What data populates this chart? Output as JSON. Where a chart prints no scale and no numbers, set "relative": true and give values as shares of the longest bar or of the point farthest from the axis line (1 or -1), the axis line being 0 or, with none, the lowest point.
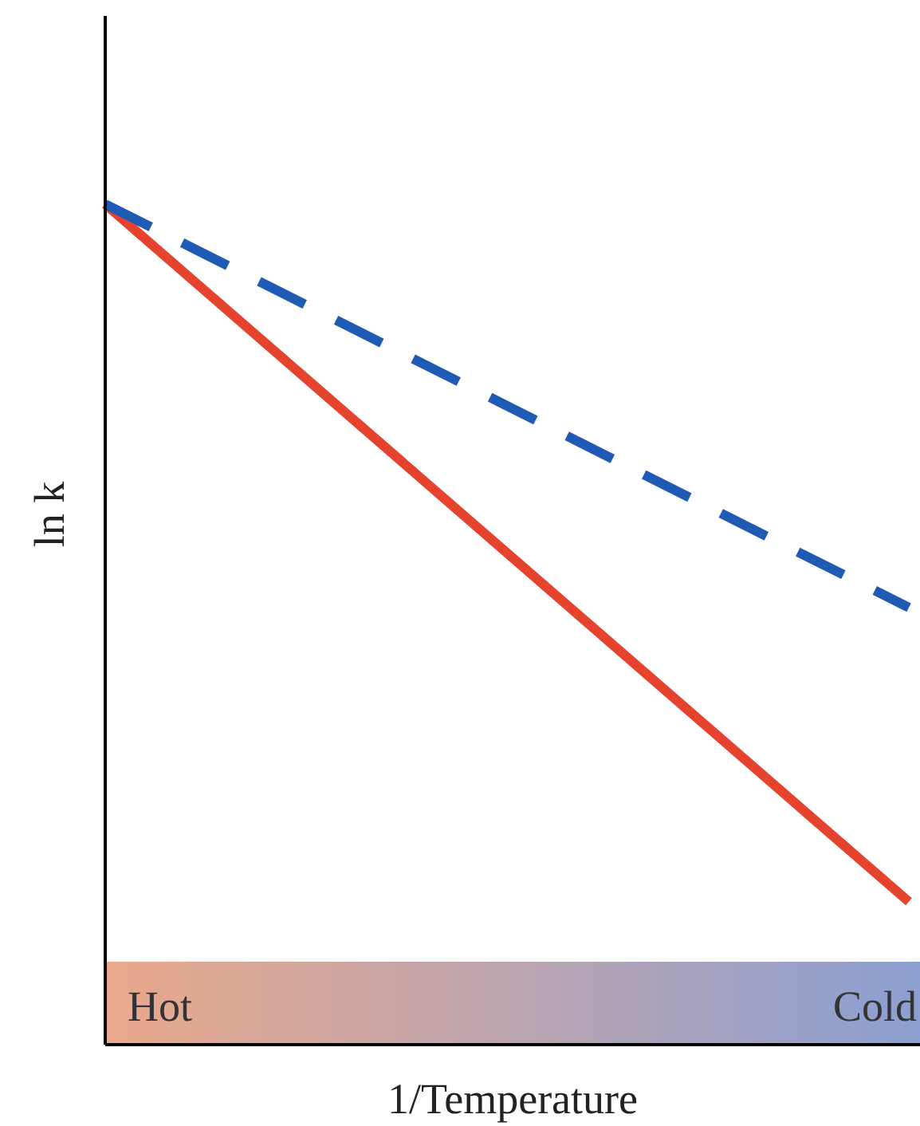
{
  "chart_data": {
    "type": "line",
    "relative": true,
    "xlabel": "1/Temperature",
    "ylabel": "ln k",
    "categories": [
      null,
      null
    ],
    "series": [
      {
        "color": "#e5432d",
        "values": [
          1,
          0.17
        ],
        "line_style": "solid"
      },
      {
        "color": "#1f5ab4",
        "values": [
          1,
          0.52
        ],
        "line_style": "dashed"
      }
    ],
    "annotations": [
      "Hot",
      "Cold"
    ]
  }
}
